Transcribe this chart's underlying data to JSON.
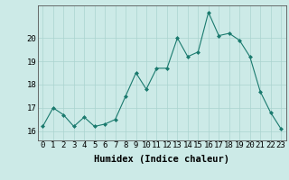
{
  "x": [
    0,
    1,
    2,
    3,
    4,
    5,
    6,
    7,
    8,
    9,
    10,
    11,
    12,
    13,
    14,
    15,
    16,
    17,
    18,
    19,
    20,
    21,
    22,
    23
  ],
  "y": [
    16.2,
    17.0,
    16.7,
    16.2,
    16.6,
    16.2,
    16.3,
    16.5,
    17.5,
    18.5,
    17.8,
    18.7,
    18.7,
    20.0,
    19.2,
    19.4,
    21.1,
    20.1,
    20.2,
    19.9,
    19.2,
    17.7,
    16.8,
    16.1
  ],
  "line_color": "#1a7a6e",
  "marker": "D",
  "marker_size": 2.0,
  "bg_color": "#cceae7",
  "grid_color": "#aad4d0",
  "xlabel": "Humidex (Indice chaleur)",
  "ylim": [
    15.6,
    21.4
  ],
  "xlim": [
    -0.5,
    23.5
  ],
  "yticks": [
    16,
    17,
    18,
    19,
    20
  ],
  "xticks": [
    0,
    1,
    2,
    3,
    4,
    5,
    6,
    7,
    8,
    9,
    10,
    11,
    12,
    13,
    14,
    15,
    16,
    17,
    18,
    19,
    20,
    21,
    22,
    23
  ],
  "tick_font_size": 6.5,
  "label_font_size": 7.5
}
